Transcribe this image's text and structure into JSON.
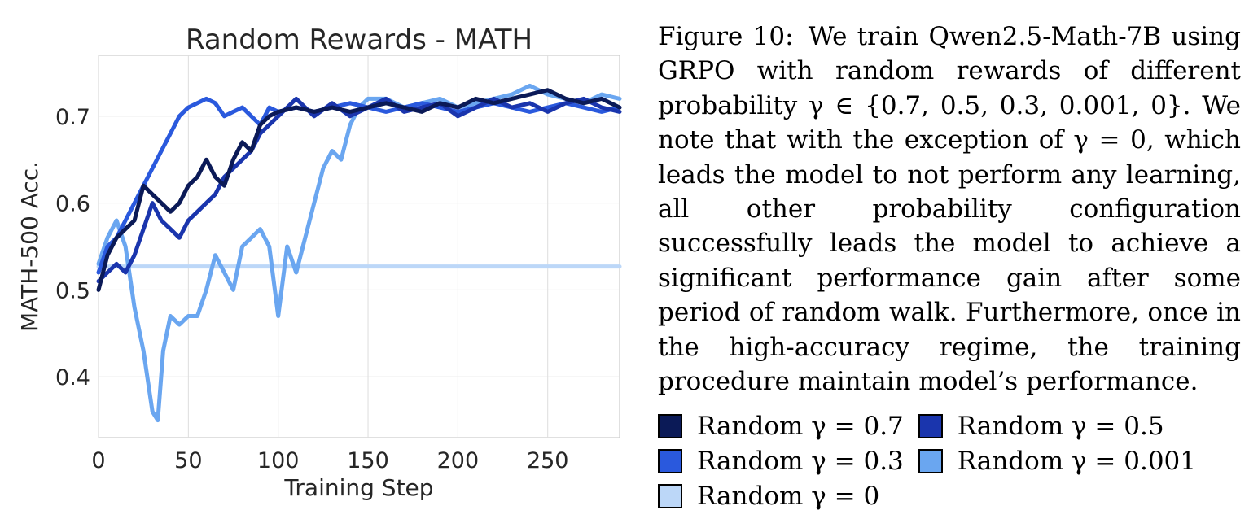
{
  "chart_data": {
    "type": "line",
    "title": "Random Rewards - MATH",
    "xlabel": "Training Step",
    "ylabel": "MATH-500 Acc.",
    "xlim": [
      0,
      290
    ],
    "ylim": [
      0.33,
      0.77
    ],
    "xticks": [
      0,
      50,
      100,
      150,
      200,
      250
    ],
    "yticks": [
      0.4,
      0.5,
      0.6,
      0.7
    ],
    "grid": true,
    "series": [
      {
        "name": "Random γ = 0.7",
        "color": "#0b1a57",
        "x": [
          0,
          5,
          10,
          15,
          20,
          25,
          30,
          35,
          40,
          45,
          50,
          55,
          60,
          65,
          70,
          75,
          80,
          85,
          90,
          95,
          100,
          110,
          120,
          130,
          140,
          150,
          160,
          170,
          180,
          190,
          200,
          210,
          220,
          230,
          240,
          250,
          260,
          270,
          280,
          290
        ],
        "y": [
          0.5,
          0.54,
          0.56,
          0.57,
          0.58,
          0.62,
          0.61,
          0.6,
          0.59,
          0.6,
          0.62,
          0.63,
          0.65,
          0.63,
          0.62,
          0.65,
          0.67,
          0.66,
          0.69,
          0.7,
          0.705,
          0.71,
          0.705,
          0.71,
          0.705,
          0.71,
          0.715,
          0.71,
          0.705,
          0.715,
          0.71,
          0.72,
          0.715,
          0.72,
          0.725,
          0.73,
          0.72,
          0.715,
          0.72,
          0.71
        ]
      },
      {
        "name": "Random γ = 0.5",
        "color": "#1a35ad",
        "x": [
          0,
          5,
          10,
          15,
          20,
          25,
          30,
          35,
          40,
          45,
          50,
          55,
          60,
          65,
          70,
          75,
          80,
          85,
          90,
          95,
          100,
          110,
          120,
          130,
          140,
          150,
          160,
          170,
          180,
          190,
          200,
          210,
          220,
          230,
          240,
          250,
          260,
          270,
          280,
          290
        ],
        "y": [
          0.51,
          0.52,
          0.53,
          0.52,
          0.54,
          0.57,
          0.6,
          0.58,
          0.57,
          0.56,
          0.58,
          0.59,
          0.6,
          0.61,
          0.63,
          0.64,
          0.65,
          0.66,
          0.68,
          0.69,
          0.7,
          0.72,
          0.7,
          0.715,
          0.7,
          0.71,
          0.72,
          0.705,
          0.71,
          0.715,
          0.7,
          0.71,
          0.72,
          0.71,
          0.715,
          0.705,
          0.715,
          0.72,
          0.71,
          0.705
        ]
      },
      {
        "name": "Random γ = 0.3",
        "color": "#2a59dd",
        "x": [
          0,
          5,
          10,
          15,
          20,
          25,
          30,
          35,
          40,
          45,
          50,
          55,
          60,
          65,
          70,
          75,
          80,
          85,
          90,
          95,
          100,
          110,
          120,
          130,
          140,
          150,
          160,
          170,
          180,
          190,
          200,
          210,
          220,
          230,
          240,
          250,
          260,
          270,
          280,
          290
        ],
        "y": [
          0.52,
          0.55,
          0.56,
          0.58,
          0.6,
          0.62,
          0.64,
          0.66,
          0.68,
          0.7,
          0.71,
          0.715,
          0.72,
          0.715,
          0.7,
          0.705,
          0.71,
          0.7,
          0.69,
          0.71,
          0.705,
          0.71,
          0.705,
          0.71,
          0.715,
          0.71,
          0.705,
          0.71,
          0.715,
          0.71,
          0.705,
          0.71,
          0.715,
          0.71,
          0.705,
          0.71,
          0.715,
          0.71,
          0.705,
          0.71
        ]
      },
      {
        "name": "Random γ = 0.001",
        "color": "#6aa6f0",
        "x": [
          0,
          5,
          10,
          15,
          20,
          25,
          30,
          33,
          36,
          40,
          45,
          50,
          55,
          60,
          65,
          70,
          75,
          80,
          85,
          90,
          95,
          100,
          105,
          110,
          115,
          120,
          125,
          130,
          135,
          140,
          145,
          150,
          160,
          170,
          180,
          190,
          200,
          210,
          220,
          230,
          240,
          250,
          260,
          270,
          280,
          290
        ],
        "y": [
          0.53,
          0.56,
          0.58,
          0.55,
          0.48,
          0.43,
          0.36,
          0.35,
          0.43,
          0.47,
          0.46,
          0.47,
          0.47,
          0.5,
          0.54,
          0.52,
          0.5,
          0.55,
          0.56,
          0.57,
          0.55,
          0.47,
          0.55,
          0.52,
          0.56,
          0.6,
          0.64,
          0.66,
          0.65,
          0.69,
          0.71,
          0.72,
          0.72,
          0.71,
          0.715,
          0.72,
          0.71,
          0.715,
          0.72,
          0.725,
          0.735,
          0.725,
          0.72,
          0.715,
          0.725,
          0.72
        ]
      },
      {
        "name": "Random γ = 0",
        "color": "#bcd7f8",
        "x": [
          0,
          290
        ],
        "y": [
          0.527,
          0.527
        ]
      }
    ]
  },
  "caption": {
    "label": "Figure 10:",
    "text": "We train Qwen2.5-Math-7B using GRPO with random rewards of different probability γ ∈ {0.7, 0.5, 0.3, 0.001, 0}. We note that with the exception of γ = 0, which leads the model to not perform any learning, all other probability configuration successfully leads the model to achieve a significant performance gain after some period of random walk. Furthermore, once in the high-accuracy regime, the training procedure maintain model’s performance."
  }
}
